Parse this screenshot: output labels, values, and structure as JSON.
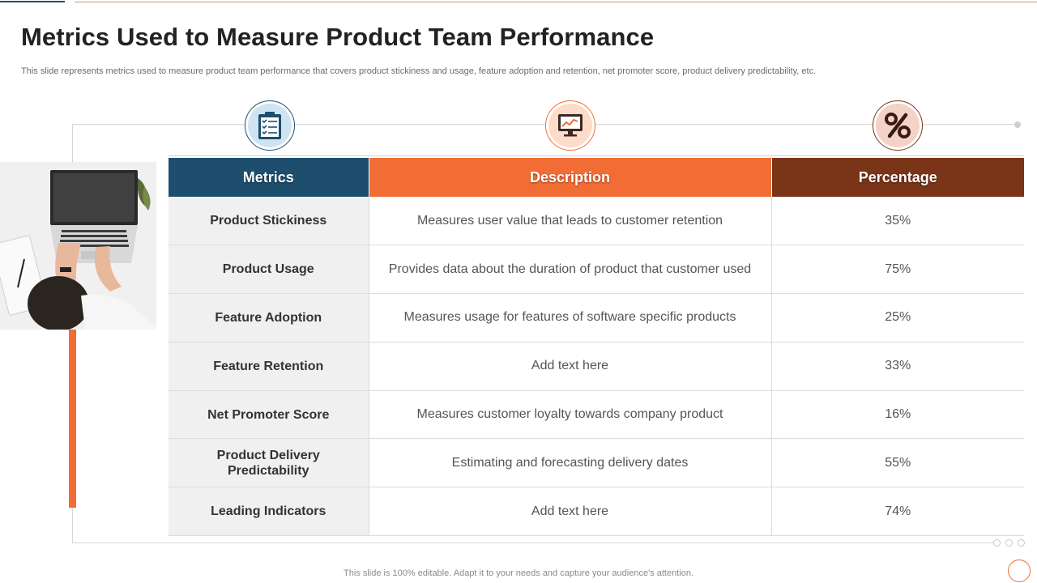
{
  "slide": {
    "title": "Metrics Used to Measure Product Team Performance",
    "subtitle": "This slide represents metrics used to measure product team performance that covers product stickiness and usage, feature adoption and retention, net promoter score, product delivery predictability, etc.",
    "footer": "This slide is 100% editable. Adapt it to your needs and capture your audience's attention."
  },
  "icons": {
    "metrics": "clipboard-checklist-icon",
    "description": "monitor-chart-icon",
    "percentage": "percent-icon"
  },
  "colors": {
    "navy": "#1d4e6e",
    "orange": "#f26c35",
    "brown": "#7a3418"
  },
  "table": {
    "headers": {
      "metrics": "Metrics",
      "description": "Description",
      "percentage": "Percentage"
    },
    "rows": [
      {
        "metric": "Product Stickiness",
        "description": "Measures user value that leads to customer retention",
        "percentage": "35%"
      },
      {
        "metric": "Product Usage",
        "description": "Provides data about the duration of product that customer used",
        "percentage": "75%"
      },
      {
        "metric": "Feature Adoption",
        "description": "Measures usage for features of software specific products",
        "percentage": "25%"
      },
      {
        "metric": "Feature Retention",
        "description": "Add text here",
        "percentage": "33%"
      },
      {
        "metric": "Net Promoter Score",
        "description": "Measures customer loyalty towards company product",
        "percentage": "16%"
      },
      {
        "metric": "Product Delivery Predictability",
        "description": "Estimating and forecasting delivery dates",
        "percentage": "55%"
      },
      {
        "metric": "Leading Indicators",
        "description": "Add text here",
        "percentage": "74%"
      }
    ]
  }
}
